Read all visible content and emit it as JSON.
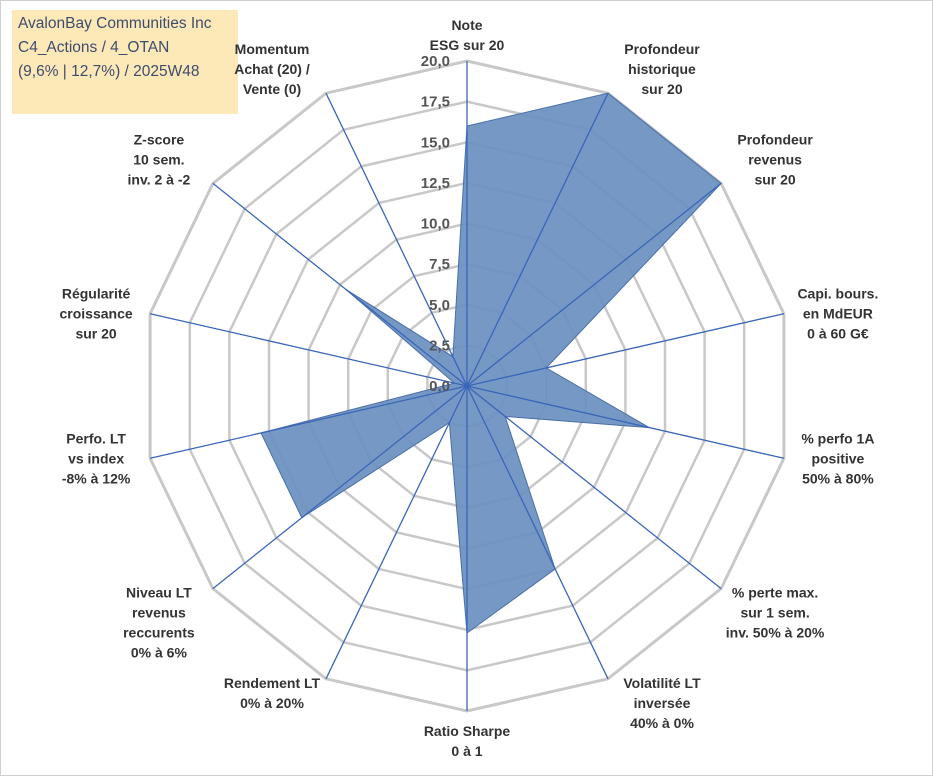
{
  "title_box": {
    "line1": "AvalonBay Communities Inc",
    "line2": "C4_Actions / 4_OTAN",
    "line3": "(9,6% | 12,7%) / 2025W48"
  },
  "colors": {
    "fill": "#6a8fc0",
    "outline": "#4a6fa8",
    "spoke": "#3a66b8",
    "grid": "#c8c8c8",
    "title_bg": "#fde9b8"
  },
  "chart_data": {
    "type": "radar",
    "rmin": 0,
    "rmax": 20,
    "ticks": [
      "0,0",
      "2,5",
      "5,0",
      "7,5",
      "10,0",
      "12,5",
      "15,0",
      "17,5",
      "20,0"
    ],
    "grid": true,
    "axes": [
      {
        "label": [
          "Note",
          "ESG sur 20"
        ],
        "value": 16.0
      },
      {
        "label": [
          "Profondeur",
          "historique",
          "sur 20"
        ],
        "value": 20.0
      },
      {
        "label": [
          "Profondeur",
          "revenus",
          "sur 20"
        ],
        "value": 20.0
      },
      {
        "label": [
          "Capi. bours.",
          "en MdEUR",
          "0 à 60 G€"
        ],
        "value": 5.0
      },
      {
        "label": [
          "% perfo 1A",
          "positive",
          "50% à 80%"
        ],
        "value": 11.5
      },
      {
        "label": [
          "% perte max.",
          "sur 1 sem.",
          "inv. 50% à 20%"
        ],
        "value": 3.0
      },
      {
        "label": [
          "Volatilité LT",
          "inversée",
          "40% à 0%"
        ],
        "value": 12.5
      },
      {
        "label": [
          "Ratio Sharpe",
          "0 à 1"
        ],
        "value": 15.2
      },
      {
        "label": [
          "Rendement LT",
          "0% à 20%"
        ],
        "value": 2.5
      },
      {
        "label": [
          "Niveau LT",
          "revenus",
          "reccurents",
          "0% à 6%"
        ],
        "value": 13.0
      },
      {
        "label": [
          "Perfo. LT",
          "vs index",
          "-8% à 12%"
        ],
        "value": 13.0
      },
      {
        "label": [
          "Régularité",
          "croissance",
          "sur 20"
        ],
        "value": 0.8
      },
      {
        "label": [
          "Z-score",
          "10 sem.",
          "inv. 2 à -2"
        ],
        "value": 9.5
      },
      {
        "label": [
          "Momentum",
          "Achat (20) /",
          "Vente (0)"
        ],
        "value": 2.0
      }
    ]
  }
}
